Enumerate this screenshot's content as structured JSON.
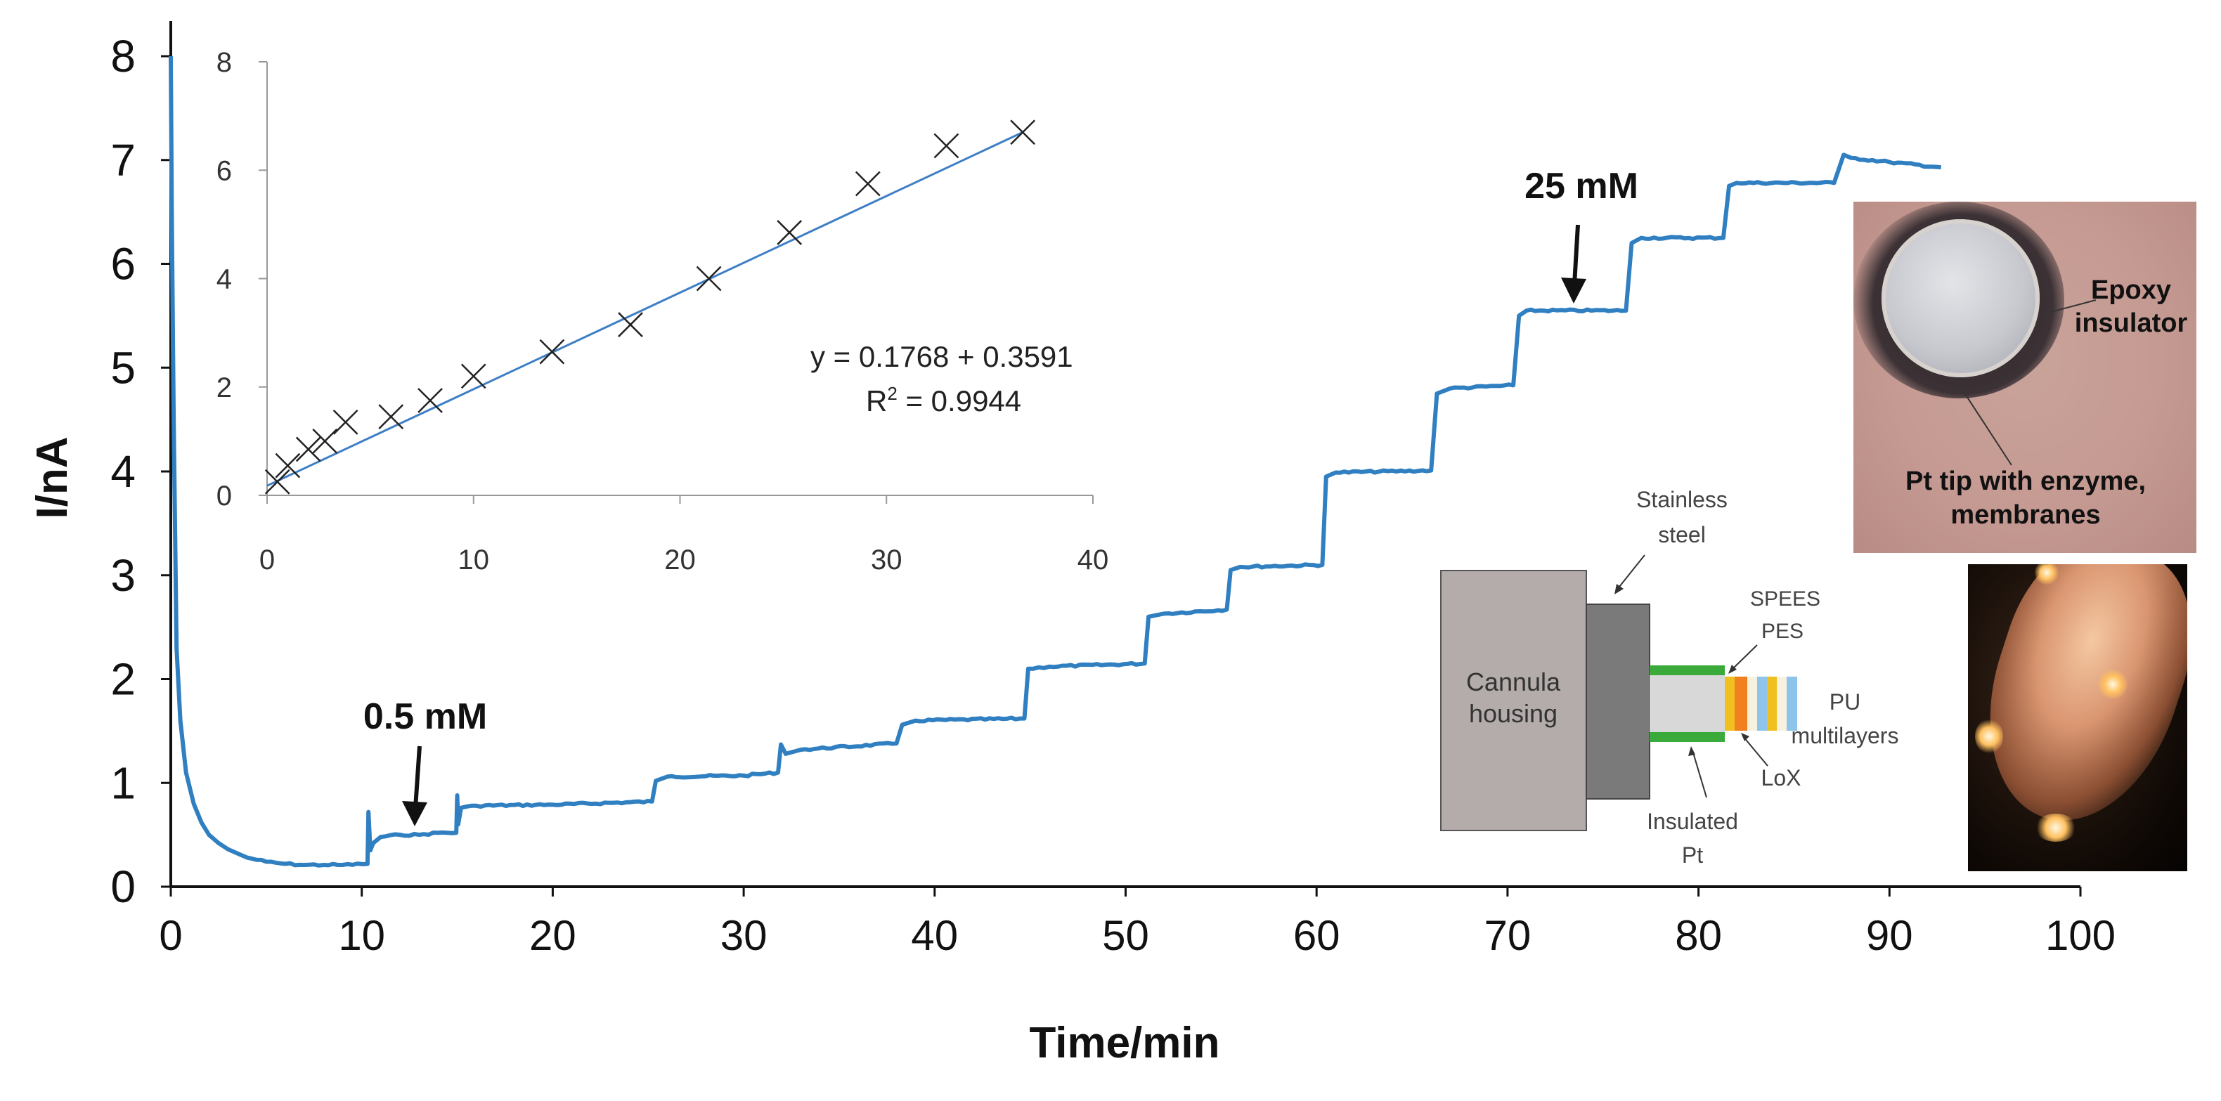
{
  "chart_data": [
    {
      "name": "main-amperometric-trace",
      "type": "line",
      "xlabel": "Time/min",
      "ylabel": "I/nA",
      "xlim": [
        0,
        100
      ],
      "ylim": [
        0,
        8
      ],
      "xticks": [
        0,
        10,
        20,
        30,
        40,
        50,
        60,
        70,
        80,
        90,
        100
      ],
      "yticks": [
        0,
        1,
        2,
        3,
        4,
        5,
        6,
        7,
        8
      ],
      "series": [
        {
          "name": "current",
          "color": "#2f7fc1",
          "x": [
            0,
            0.05,
            0.15,
            0.3,
            0.5,
            0.8,
            1.2,
            1.6,
            2,
            2.5,
            3,
            3.5,
            4,
            5,
            6,
            7,
            8,
            9,
            10.3,
            10.35,
            10.45,
            10.6,
            11,
            12,
            13,
            14,
            14.95,
            15.0,
            15.05,
            15.2,
            16,
            20,
            25.2,
            25.4,
            26,
            30,
            31.8,
            31.95,
            32.2,
            33,
            38,
            38.3,
            39,
            44.7,
            44.9,
            46,
            51,
            51.2,
            52,
            55.3,
            55.5,
            56,
            60.3,
            60.5,
            61,
            66,
            66.3,
            67,
            70.3,
            70.6,
            71,
            76.2,
            76.5,
            77,
            81.3,
            81.6,
            82,
            87.1,
            87.6,
            88,
            90,
            92.7
          ],
          "y": [
            8.0,
            6.5,
            4.5,
            2.3,
            1.6,
            1.1,
            0.8,
            0.62,
            0.5,
            0.42,
            0.36,
            0.32,
            0.28,
            0.24,
            0.22,
            0.21,
            0.21,
            0.21,
            0.22,
            0.72,
            0.35,
            0.42,
            0.48,
            0.5,
            0.5,
            0.52,
            0.52,
            0.88,
            0.6,
            0.76,
            0.78,
            0.79,
            0.82,
            1.02,
            1.06,
            1.07,
            1.1,
            1.37,
            1.28,
            1.32,
            1.38,
            1.56,
            1.6,
            1.62,
            2.1,
            2.12,
            2.15,
            2.6,
            2.63,
            2.67,
            3.05,
            3.08,
            3.1,
            3.95,
            3.99,
            4.01,
            4.75,
            4.8,
            4.83,
            5.5,
            5.55,
            5.55,
            6.2,
            6.25,
            6.25,
            6.75,
            6.78,
            6.78,
            7.05,
            7.02,
            6.98,
            6.93
          ]
        }
      ],
      "annotations": [
        "0.5 mM",
        "25 mM"
      ]
    },
    {
      "name": "inset-calibration",
      "type": "scatter",
      "xlim": [
        0,
        40
      ],
      "ylim": [
        0,
        8
      ],
      "xticks": [
        0,
        10,
        20,
        30,
        40
      ],
      "yticks": [
        0,
        2,
        4,
        6,
        8
      ],
      "series": [
        {
          "name": "measured",
          "marker": "x",
          "x": [
            0.5,
            1.0,
            2.0,
            2.8,
            3.8,
            6.0,
            7.9,
            10.0,
            13.8,
            17.6,
            21.4,
            25.3,
            29.1,
            32.9,
            36.6
          ],
          "y": [
            0.25,
            0.55,
            0.85,
            1.0,
            1.35,
            1.45,
            1.75,
            2.2,
            2.65,
            3.15,
            4.0,
            4.85,
            5.75,
            6.45,
            6.7
          ]
        }
      ],
      "fit_line": {
        "color": "#3f7fc5",
        "x": [
          0,
          36.6
        ],
        "y": [
          0.1768,
          6.7
        ]
      },
      "equation": "y = 0.1768 + 0.3591",
      "r2_label": "R",
      "r2_sup": "2",
      "r2_value": " = 0.9944"
    }
  ],
  "diagram": {
    "cannula_housing_line1": "Cannula",
    "cannula_housing_line2": "housing",
    "stainless_line1": "Stainless",
    "stainless_line2": "steel",
    "spees": "SPEES",
    "pes": "PES",
    "pu_line1": "PU",
    "pu_line2": "multilayers",
    "lox": "LoX",
    "insulated_line1": "Insulated",
    "insulated_line2": "Pt"
  },
  "photo_top": {
    "epoxy_line1": "Epoxy",
    "epoxy_line2": "insulator",
    "tip_line1": "Pt tip with enzyme,",
    "tip_line2": "membranes"
  },
  "colors": {
    "trace": "#2f7fc1",
    "fit": "#3f7fc5",
    "housing": "#b3acaa",
    "steel": "#7a7a7a",
    "membrane_green": "#3aaa3a",
    "layer_yellow": "#f0c020",
    "layer_orange": "#f08020",
    "layer_blue": "#8ec4ea"
  }
}
